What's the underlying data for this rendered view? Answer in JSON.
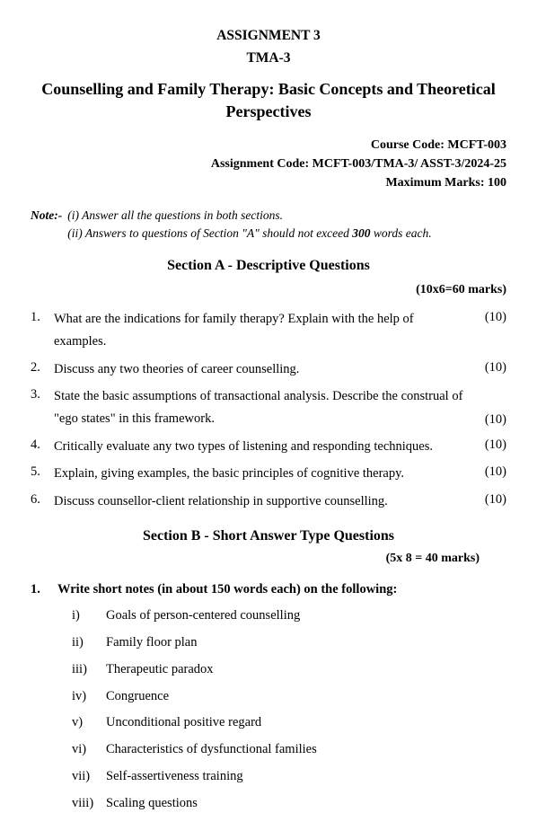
{
  "header": {
    "assignment": "ASSIGNMENT 3",
    "tma": "TMA-3",
    "title": "Counselling and Family Therapy: Basic Concepts and Theoretical Perspectives"
  },
  "meta": {
    "course_code_label": "Course Code: MCFT-003",
    "assignment_code_label": "Assignment Code: MCFT-003/TMA-3/ ASST-3/2024-25",
    "max_marks_label": "Maximum Marks: 100"
  },
  "note": {
    "label": "Note:-",
    "line1": "(i) Answer all the questions in both sections.",
    "line2a": "(ii) Answers to questions of Section \"A\" should not exceed ",
    "bold300": "300",
    "line2b": " words each."
  },
  "sectionA": {
    "title": "Section A - Descriptive Questions",
    "marks": "(10x6=60 marks)",
    "questions": [
      {
        "n": "1.",
        "text": "What are the indications for family therapy? Explain with the help of examples.",
        "m": "(10)"
      },
      {
        "n": "2.",
        "text": "Discuss any two theories of career counselling.",
        "m": "(10)"
      },
      {
        "n": "3.",
        "text": "State the basic assumptions of transactional analysis. Describe the construal of \"ego states\" in this framework.",
        "m": "(10)"
      },
      {
        "n": "4.",
        "text": "Critically evaluate any two types of listening and responding techniques.",
        "m": "(10)"
      },
      {
        "n": "5.",
        "text": "Explain, giving examples, the basic principles of cognitive therapy.",
        "m": "(10)"
      },
      {
        "n": "6.",
        "text": "Discuss counsellor-client relationship in supportive counselling.",
        "m": "(10)"
      }
    ]
  },
  "sectionB": {
    "title": "Section B - Short Answer Type Questions",
    "marks": "(5x 8 = 40 marks)",
    "q1": {
      "n": "1.",
      "stem": "Write short notes (in about 150 words each) on the following:",
      "items": [
        {
          "label": "i)",
          "text": "Goals of person-centered counselling"
        },
        {
          "label": "ii)",
          "text": "Family floor plan"
        },
        {
          "label": "iii)",
          "text": "Therapeutic paradox"
        },
        {
          "label": "iv)",
          "text": "Congruence"
        },
        {
          "label": "v)",
          "text": "Unconditional positive regard"
        },
        {
          "label": "vi)",
          "text": "Characteristics of dysfunctional families"
        },
        {
          "label": "vii)",
          "text": "Self-assertiveness training"
        },
        {
          "label": "viii)",
          "text": "Scaling questions"
        }
      ]
    }
  }
}
